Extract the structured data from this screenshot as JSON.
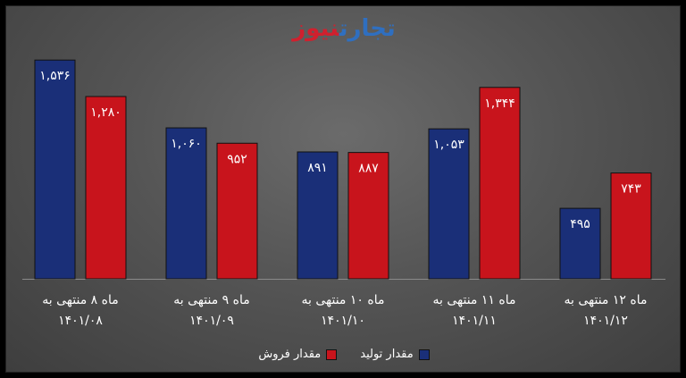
{
  "logo": {
    "part1": "تجارت",
    "part2": "نیوز",
    "color1": "#2f6fc0",
    "color2": "#d0202e"
  },
  "chart_data": {
    "type": "bar",
    "categories": [
      [
        "ماه ۸ منتهی به",
        "۱۴۰۱/۰۸"
      ],
      [
        "ماه ۹ منتهی به",
        "۱۴۰۱/۰۹"
      ],
      [
        "ماه ۱۰ منتهی به",
        "۱۴۰۱/۱۰"
      ],
      [
        "ماه ۱۱ منتهی به",
        "۱۴۰۱/۱۱"
      ],
      [
        "ماه ۱۲ منتهی به",
        "۱۴۰۱/۱۲"
      ]
    ],
    "series": [
      {
        "name": "مقدار تولید",
        "color": "#1a2f78",
        "values": [
          1536,
          1060,
          891,
          1053,
          495
        ],
        "labels": [
          "۱,۵۳۶",
          "۱,۰۶۰",
          "۸۹۱",
          "۱,۰۵۳",
          "۴۹۵"
        ]
      },
      {
        "name": "مقدار فروش",
        "color": "#c8141c",
        "values": [
          1280,
          952,
          887,
          1344,
          743
        ],
        "labels": [
          "۱,۲۸۰",
          "۹۵۲",
          "۸۸۷",
          "۱,۳۴۴",
          "۷۴۳"
        ]
      }
    ],
    "ylim": [
      0,
      1600
    ],
    "grid": false,
    "legend_position": "bottom"
  }
}
